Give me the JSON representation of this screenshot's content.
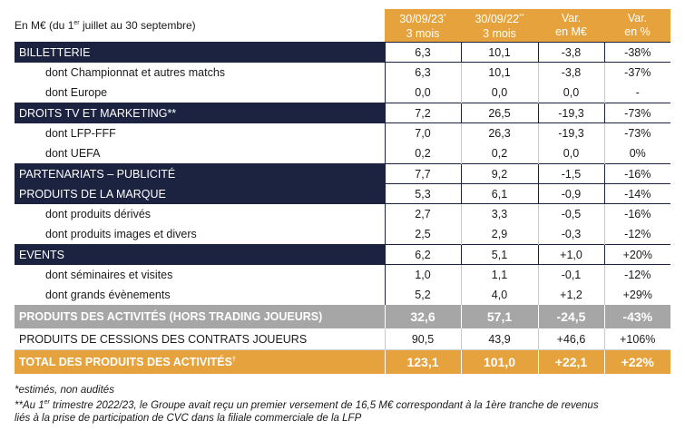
{
  "header": {
    "caption_pre": "En M€ (du 1",
    "caption_sup": "er",
    "caption_post": " juillet au 30 septembre)",
    "col1_l1": "30/09/23",
    "col1_l1_sup": "*",
    "col1_l2": "3 mois",
    "col2_l1": "30/09/22",
    "col2_l1_sup": "**",
    "col2_l2": "3 mois",
    "col3_l1": "Var.",
    "col3_l2": "en M€",
    "col4_l1": "Var.",
    "col4_l2": "en %"
  },
  "rows": [
    {
      "type": "cat",
      "label": "BILLETTERIE",
      "v1": "6,3",
      "v2": "10,1",
      "v3": "-3,8",
      "v4": "-38%"
    },
    {
      "type": "sub",
      "label": "dont Championnat et autres matchs",
      "v1": "6,3",
      "v2": "10,1",
      "v3": "-3,8",
      "v4": "-37%"
    },
    {
      "type": "sub",
      "label": "dont Europe",
      "v1": "0,0",
      "v2": "0,0",
      "v3": "0,0",
      "v4": "-"
    },
    {
      "type": "cat",
      "label": "DROITS TV ET MARKETING**",
      "v1": "7,2",
      "v2": "26,5",
      "v3": "-19,3",
      "v4": "-73%"
    },
    {
      "type": "sub",
      "label": "dont LFP-FFF",
      "v1": "7,0",
      "v2": "26,3",
      "v3": "-19,3",
      "v4": "-73%"
    },
    {
      "type": "sub",
      "label": "dont UEFA",
      "v1": "0,2",
      "v2": "0,2",
      "v3": "0,0",
      "v4": "0%"
    },
    {
      "type": "cat",
      "label": "PARTENARIATS – PUBLICITÉ",
      "v1": "7,7",
      "v2": "9,2",
      "v3": "-1,5",
      "v4": "-16%"
    },
    {
      "type": "cat",
      "label": "PRODUITS DE LA MARQUE",
      "v1": "5,3",
      "v2": "6,1",
      "v3": "-0,9",
      "v4": "-14%"
    },
    {
      "type": "sub",
      "label": "dont produits dérivés",
      "v1": "2,7",
      "v2": "3,3",
      "v3": "-0,5",
      "v4": "-16%"
    },
    {
      "type": "sub",
      "label": "dont produits images et divers",
      "v1": "2,5",
      "v2": "2,9",
      "v3": "-0,3",
      "v4": "-12%"
    },
    {
      "type": "cat",
      "label": "EVENTS",
      "v1": "6,2",
      "v2": "5,1",
      "v3": "+1,0",
      "v4": "+20%"
    },
    {
      "type": "sub",
      "label": "dont séminaires et visites",
      "v1": "1,0",
      "v2": "1,1",
      "v3": "-0,1",
      "v4": "-12%"
    },
    {
      "type": "sub",
      "label": "dont grands évènements",
      "v1": "5,2",
      "v2": "4,0",
      "v3": "+1,2",
      "v4": "+29%"
    }
  ],
  "summary": {
    "label": "PRODUITS DES ACTIVITÉS (HORS TRADING JOUEURS)",
    "v1": "32,6",
    "v2": "57,1",
    "v3": "-24,5",
    "v4": "-43%"
  },
  "cessions": {
    "label": "PRODUITS DE CESSIONS DES CONTRATS JOUEURS",
    "v1": "90,5",
    "v2": "43,9",
    "v3": "+46,6",
    "v4": "+106%"
  },
  "total": {
    "label": "TOTAL DES PRODUITS DES ACTIVITÉS",
    "label_sup": "†",
    "v1": "123,1",
    "v2": "101,0",
    "v3": "+22,1",
    "v4": "+22%"
  },
  "notes": {
    "n1": "*estimés, non audités",
    "n2_pre": "**Au 1",
    "n2_sup": "er",
    "n2_post": " trimestre 2022/23, le Groupe avait reçu un premier versement de 16,5 M€ correspondant à la 1ère tranche de revenus",
    "n3": "liés à la prise de participation de CVC dans la filiale commerciale de la LFP"
  },
  "colors": {
    "navy": "#1c2341",
    "orange": "#e6a33d",
    "grey": "#a6a6a6"
  }
}
